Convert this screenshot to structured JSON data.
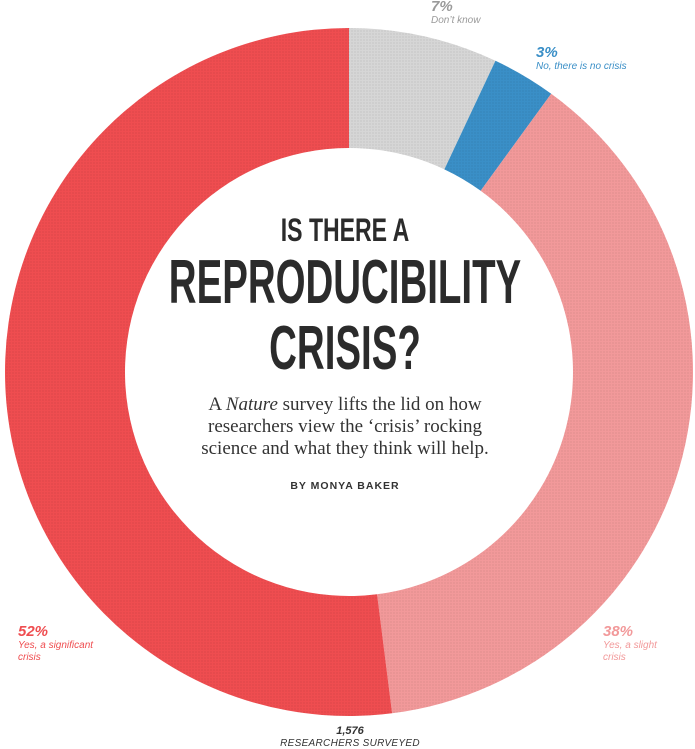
{
  "chart_data": {
    "type": "pie",
    "categories": [
      "Don’t know",
      "No, there is no crisis",
      "Yes, a slight crisis",
      "Yes, a significant crisis"
    ],
    "values": [
      7,
      3,
      38,
      52
    ],
    "labels": [
      "7%",
      "3%",
      "38%",
      "52%"
    ],
    "colors": [
      "#d6d6d6",
      "#3a8fc7",
      "#f2999a",
      "#ef4d50"
    ],
    "donut": true
  },
  "headline": {
    "line1": "IS THERE A",
    "line2": "REPRODUCIBILITY",
    "line3": "CRISIS?"
  },
  "deck": {
    "prefix": "A ",
    "italic": "Nature",
    "rest": " survey lifts the lid on how researchers view the ‘crisis’ rocking science and what they think will help."
  },
  "byline": "BY MONYA BAKER",
  "footer": {
    "count": "1,576",
    "label": "RESEARCHERS SURVEYED"
  }
}
